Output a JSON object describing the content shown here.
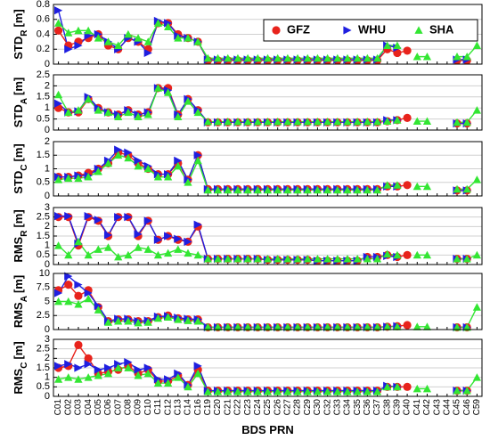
{
  "chart_data": [
    {
      "type": "line",
      "ylabel": "STD",
      "ylabel_sub": "R",
      "ylabel_unit": "[m]",
      "ylim": [
        0,
        0.8
      ],
      "yticks": [
        0,
        0.2,
        0.4,
        0.6,
        0.8
      ],
      "grid": true,
      "legend": "upper right",
      "series": [
        {
          "name": "GFZ",
          "color": "#e8231c",
          "marker": "o",
          "values": [
            0.45,
            0.25,
            0.3,
            0.35,
            0.4,
            0.25,
            0.2,
            0.35,
            0.3,
            0.2,
            0.55,
            0.55,
            0.4,
            0.35,
            0.3,
            0.05,
            0.05,
            0.05,
            0.05,
            0.05,
            0.05,
            0.05,
            0.05,
            0.05,
            0.05,
            0.05,
            0.05,
            0.05,
            0.05,
            0.05,
            0.05,
            0.05,
            0.05,
            0.2,
            0.15,
            0.18,
            null,
            null,
            null,
            null,
            0.05,
            0.05,
            null
          ]
        },
        {
          "name": "WHU",
          "color": "#1f1fe0",
          "marker": ">",
          "values": [
            0.72,
            0.2,
            0.25,
            0.38,
            0.4,
            0.3,
            0.2,
            0.35,
            0.3,
            0.15,
            0.58,
            0.55,
            0.38,
            0.35,
            0.3,
            0.06,
            0.06,
            0.06,
            0.06,
            0.06,
            0.06,
            0.06,
            0.06,
            0.06,
            0.06,
            0.06,
            0.06,
            0.06,
            0.06,
            0.06,
            0.06,
            0.06,
            0.06,
            0.25,
            0.22,
            null,
            null,
            null,
            null,
            null,
            0.06,
            0.06,
            null
          ]
        },
        {
          "name": "SHA",
          "color": "#33e633",
          "marker": "^",
          "values": [
            0.55,
            0.42,
            0.45,
            0.45,
            0.35,
            0.3,
            0.25,
            0.4,
            0.35,
            0.3,
            0.55,
            0.5,
            0.35,
            0.35,
            0.3,
            0.08,
            0.08,
            0.08,
            0.08,
            0.08,
            0.08,
            0.08,
            0.08,
            0.08,
            0.08,
            0.08,
            0.08,
            0.08,
            0.08,
            0.08,
            0.08,
            0.08,
            0.08,
            0.25,
            0.25,
            null,
            0.1,
            0.1,
            null,
            null,
            0.1,
            0.1,
            0.25
          ]
        }
      ]
    },
    {
      "type": "line",
      "ylabel": "STD",
      "ylabel_sub": "A",
      "ylabel_unit": "[m]",
      "ylim": [
        0,
        2.5
      ],
      "yticks": [
        0,
        0.5,
        1,
        1.5,
        2,
        2.5
      ],
      "grid": true,
      "series": [
        {
          "name": "GFZ",
          "color": "#e8231c",
          "marker": "o",
          "values": [
            1.0,
            0.8,
            0.8,
            1.4,
            1.0,
            0.8,
            0.7,
            0.9,
            0.7,
            0.8,
            1.9,
            1.9,
            0.7,
            1.4,
            0.9,
            0.35,
            0.35,
            0.35,
            0.35,
            0.35,
            0.35,
            0.35,
            0.35,
            0.35,
            0.35,
            0.35,
            0.35,
            0.35,
            0.35,
            0.35,
            0.35,
            0.35,
            0.35,
            0.4,
            0.45,
            0.55,
            null,
            null,
            null,
            null,
            0.3,
            0.3,
            null
          ]
        },
        {
          "name": "WHU",
          "color": "#1f1fe0",
          "marker": ">",
          "values": [
            1.2,
            0.8,
            0.85,
            1.5,
            1.0,
            0.8,
            0.7,
            0.9,
            0.7,
            0.8,
            1.9,
            1.8,
            0.7,
            1.4,
            0.9,
            0.35,
            0.35,
            0.35,
            0.35,
            0.35,
            0.35,
            0.35,
            0.35,
            0.35,
            0.35,
            0.35,
            0.35,
            0.35,
            0.35,
            0.35,
            0.35,
            0.35,
            0.35,
            0.45,
            0.45,
            null,
            null,
            null,
            null,
            null,
            0.3,
            0.3,
            null
          ]
        },
        {
          "name": "SHA",
          "color": "#33e633",
          "marker": "^",
          "values": [
            1.6,
            0.8,
            0.9,
            1.4,
            0.9,
            0.8,
            0.6,
            0.8,
            0.6,
            0.7,
            1.9,
            1.7,
            0.6,
            1.3,
            0.8,
            0.38,
            0.38,
            0.38,
            0.38,
            0.38,
            0.38,
            0.38,
            0.38,
            0.38,
            0.38,
            0.38,
            0.38,
            0.38,
            0.38,
            0.38,
            0.38,
            0.38,
            0.38,
            0.4,
            0.45,
            null,
            0.4,
            0.4,
            null,
            null,
            0.35,
            0.35,
            0.9
          ]
        }
      ]
    },
    {
      "type": "line",
      "ylabel": "STD",
      "ylabel_sub": "C",
      "ylabel_unit": "[m]",
      "ylim": [
        0,
        2
      ],
      "yticks": [
        0,
        0.5,
        1,
        1.5,
        2
      ],
      "grid": true,
      "series": [
        {
          "name": "GFZ",
          "color": "#e8231c",
          "marker": "o",
          "values": [
            0.7,
            0.7,
            0.75,
            0.85,
            1.0,
            1.2,
            1.6,
            1.5,
            1.2,
            1.0,
            0.8,
            0.8,
            1.2,
            0.6,
            1.5,
            0.25,
            0.25,
            0.25,
            0.25,
            0.25,
            0.25,
            0.25,
            0.25,
            0.25,
            0.25,
            0.25,
            0.25,
            0.25,
            0.25,
            0.25,
            0.25,
            0.25,
            0.25,
            0.35,
            0.35,
            0.4,
            null,
            null,
            null,
            null,
            0.2,
            0.2,
            null
          ]
        },
        {
          "name": "WHU",
          "color": "#1f1fe0",
          "marker": ">",
          "values": [
            0.7,
            0.7,
            0.75,
            0.75,
            1.0,
            1.3,
            1.7,
            1.6,
            1.3,
            1.1,
            0.8,
            0.8,
            1.3,
            0.6,
            1.5,
            0.25,
            0.25,
            0.25,
            0.25,
            0.25,
            0.25,
            0.25,
            0.25,
            0.25,
            0.25,
            0.25,
            0.25,
            0.25,
            0.25,
            0.25,
            0.25,
            0.25,
            0.25,
            0.35,
            0.35,
            null,
            null,
            null,
            null,
            null,
            0.2,
            0.2,
            null
          ]
        },
        {
          "name": "SHA",
          "color": "#33e633",
          "marker": "^",
          "values": [
            0.6,
            0.65,
            0.65,
            0.7,
            0.9,
            1.2,
            1.5,
            1.4,
            1.1,
            1.0,
            0.7,
            0.7,
            1.1,
            0.5,
            1.3,
            0.22,
            0.22,
            0.22,
            0.22,
            0.22,
            0.22,
            0.22,
            0.22,
            0.22,
            0.22,
            0.22,
            0.22,
            0.22,
            0.22,
            0.22,
            0.22,
            0.22,
            0.22,
            0.4,
            0.4,
            null,
            0.35,
            0.35,
            null,
            null,
            0.25,
            0.25,
            0.6
          ]
        }
      ]
    },
    {
      "type": "line",
      "ylabel": "RMS",
      "ylabel_sub": "R",
      "ylabel_unit": "[m]",
      "ylim": [
        0,
        3
      ],
      "yticks": [
        0,
        0.5,
        1,
        1.5,
        2,
        2.5,
        3
      ],
      "grid": true,
      "series": [
        {
          "name": "GFZ",
          "color": "#e8231c",
          "marker": "o",
          "values": [
            2.5,
            2.5,
            1.0,
            2.5,
            2.3,
            1.5,
            2.5,
            2.5,
            1.5,
            2.3,
            1.3,
            1.5,
            1.3,
            1.2,
            2.0,
            0.3,
            0.3,
            0.3,
            0.3,
            0.3,
            0.3,
            0.25,
            0.25,
            0.25,
            0.25,
            0.25,
            0.2,
            0.2,
            0.2,
            0.2,
            0.2,
            0.4,
            0.4,
            0.5,
            0.4,
            0.5,
            null,
            null,
            null,
            null,
            0.3,
            0.3,
            null
          ]
        },
        {
          "name": "WHU",
          "color": "#1f1fe0",
          "marker": ">",
          "values": [
            2.55,
            2.55,
            1.1,
            2.55,
            2.35,
            1.55,
            2.5,
            2.5,
            1.6,
            2.3,
            1.3,
            1.5,
            1.35,
            1.2,
            2.1,
            0.3,
            0.3,
            0.3,
            0.3,
            0.3,
            0.3,
            0.25,
            0.25,
            0.25,
            0.25,
            0.25,
            0.2,
            0.2,
            0.2,
            0.2,
            0.2,
            0.4,
            0.4,
            0.45,
            0.4,
            null,
            null,
            null,
            null,
            null,
            0.3,
            0.3,
            null
          ]
        },
        {
          "name": "SHA",
          "color": "#33e633",
          "marker": "^",
          "values": [
            1.0,
            0.5,
            1.2,
            0.5,
            0.8,
            0.9,
            0.4,
            0.5,
            0.9,
            0.8,
            0.5,
            0.6,
            0.8,
            0.6,
            0.5,
            0.3,
            0.3,
            0.3,
            0.3,
            0.3,
            0.3,
            0.3,
            0.3,
            0.3,
            0.3,
            0.3,
            0.3,
            0.3,
            0.3,
            0.3,
            0.3,
            0.3,
            0.3,
            0.55,
            0.5,
            null,
            0.5,
            0.5,
            null,
            null,
            0.3,
            0.3,
            0.5
          ]
        }
      ]
    },
    {
      "type": "line",
      "ylabel": "RMS",
      "ylabel_sub": "A",
      "ylabel_unit": "[m]",
      "ylim": [
        0,
        10
      ],
      "yticks": [
        0,
        2.5,
        5,
        7.5,
        10
      ],
      "grid": true,
      "series": [
        {
          "name": "GFZ",
          "color": "#e8231c",
          "marker": "o",
          "values": [
            7,
            8,
            6,
            7,
            4,
            1.5,
            1.8,
            1.8,
            1.5,
            1.5,
            2.2,
            2.5,
            2,
            1.8,
            1.8,
            0.4,
            0.4,
            0.4,
            0.4,
            0.4,
            0.4,
            0.4,
            0.4,
            0.4,
            0.4,
            0.4,
            0.4,
            0.4,
            0.4,
            0.4,
            0.4,
            0.4,
            0.4,
            0.5,
            0.6,
            0.8,
            null,
            null,
            null,
            null,
            0.4,
            0.4,
            null
          ]
        },
        {
          "name": "WHU",
          "color": "#1f1fe0",
          "marker": ">",
          "values": [
            6.5,
            9.5,
            8,
            6.5,
            4.2,
            1.5,
            1.9,
            1.9,
            1.5,
            1.6,
            2.3,
            2.4,
            2.1,
            1.9,
            1.8,
            0.4,
            0.4,
            0.4,
            0.4,
            0.4,
            0.4,
            0.4,
            0.4,
            0.4,
            0.4,
            0.4,
            0.4,
            0.4,
            0.4,
            0.4,
            0.4,
            0.4,
            0.4,
            0.5,
            0.6,
            null,
            null,
            null,
            null,
            null,
            0.4,
            0.4,
            null
          ]
        },
        {
          "name": "SHA",
          "color": "#33e633",
          "marker": "^",
          "values": [
            5,
            5,
            4.5,
            5.5,
            3.5,
            1.3,
            1.5,
            1.5,
            1.2,
            1.3,
            2,
            2.2,
            1.8,
            1.6,
            1.5,
            0.45,
            0.45,
            0.45,
            0.45,
            0.45,
            0.45,
            0.45,
            0.45,
            0.45,
            0.45,
            0.45,
            0.45,
            0.45,
            0.45,
            0.45,
            0.45,
            0.45,
            0.45,
            0.5,
            0.5,
            null,
            0.5,
            0.5,
            null,
            null,
            0.4,
            0.4,
            4
          ]
        }
      ]
    },
    {
      "type": "line",
      "ylabel": "RMS",
      "ylabel_sub": "C",
      "ylabel_unit": "[m]",
      "ylim": [
        0,
        3
      ],
      "yticks": [
        0,
        0.5,
        1,
        1.5,
        2,
        2.5,
        3
      ],
      "grid": true,
      "xlabel": "BDS PRN",
      "categories": [
        "C01",
        "C02",
        "C03",
        "C04",
        "C05",
        "C06",
        "C07",
        "C08",
        "C09",
        "C10",
        "C11",
        "C12",
        "C13",
        "C14",
        "C16",
        "C19",
        "C20",
        "C21",
        "C22",
        "C23",
        "C24",
        "C25",
        "C26",
        "C27",
        "C28",
        "C29",
        "C30",
        "C32",
        "C33",
        "C34",
        "C35",
        "C36",
        "C37",
        "C38",
        "C39",
        "C40",
        "C41",
        "C42",
        "C43",
        "C44",
        "C45",
        "C46",
        "C59"
      ],
      "series": [
        {
          "name": "GFZ",
          "color": "#e8231c",
          "marker": "o",
          "values": [
            1.5,
            1.6,
            2.7,
            2.0,
            1.2,
            1.3,
            1.4,
            1.6,
            1.2,
            1.4,
            0.8,
            0.8,
            1.1,
            0.6,
            1.4,
            0.3,
            0.3,
            0.3,
            0.3,
            0.3,
            0.3,
            0.3,
            0.3,
            0.3,
            0.3,
            0.3,
            0.3,
            0.3,
            0.3,
            0.3,
            0.3,
            0.3,
            0.3,
            0.5,
            0.5,
            0.5,
            null,
            null,
            null,
            null,
            0.3,
            0.3,
            null
          ]
        },
        {
          "name": "WHU",
          "color": "#1f1fe0",
          "marker": ">",
          "values": [
            1.6,
            1.7,
            1.5,
            1.7,
            1.4,
            1.5,
            1.7,
            1.8,
            1.4,
            1.5,
            0.9,
            0.9,
            1.2,
            0.6,
            1.6,
            0.3,
            0.3,
            0.3,
            0.3,
            0.3,
            0.3,
            0.3,
            0.3,
            0.3,
            0.3,
            0.3,
            0.3,
            0.3,
            0.3,
            0.3,
            0.3,
            0.3,
            0.3,
            0.55,
            0.5,
            null,
            null,
            null,
            null,
            null,
            0.3,
            0.3,
            null
          ]
        },
        {
          "name": "SHA",
          "color": "#33e633",
          "marker": "^",
          "values": [
            0.9,
            1,
            0.9,
            1,
            1.1,
            1.2,
            1.5,
            1.5,
            1.1,
            1.2,
            0.7,
            0.7,
            1,
            0.5,
            1.2,
            0.25,
            0.25,
            0.25,
            0.25,
            0.25,
            0.25,
            0.25,
            0.25,
            0.25,
            0.25,
            0.25,
            0.25,
            0.25,
            0.25,
            0.25,
            0.25,
            0.25,
            0.25,
            0.5,
            0.5,
            null,
            0.4,
            0.4,
            null,
            null,
            0.3,
            0.3,
            1
          ]
        }
      ]
    }
  ]
}
